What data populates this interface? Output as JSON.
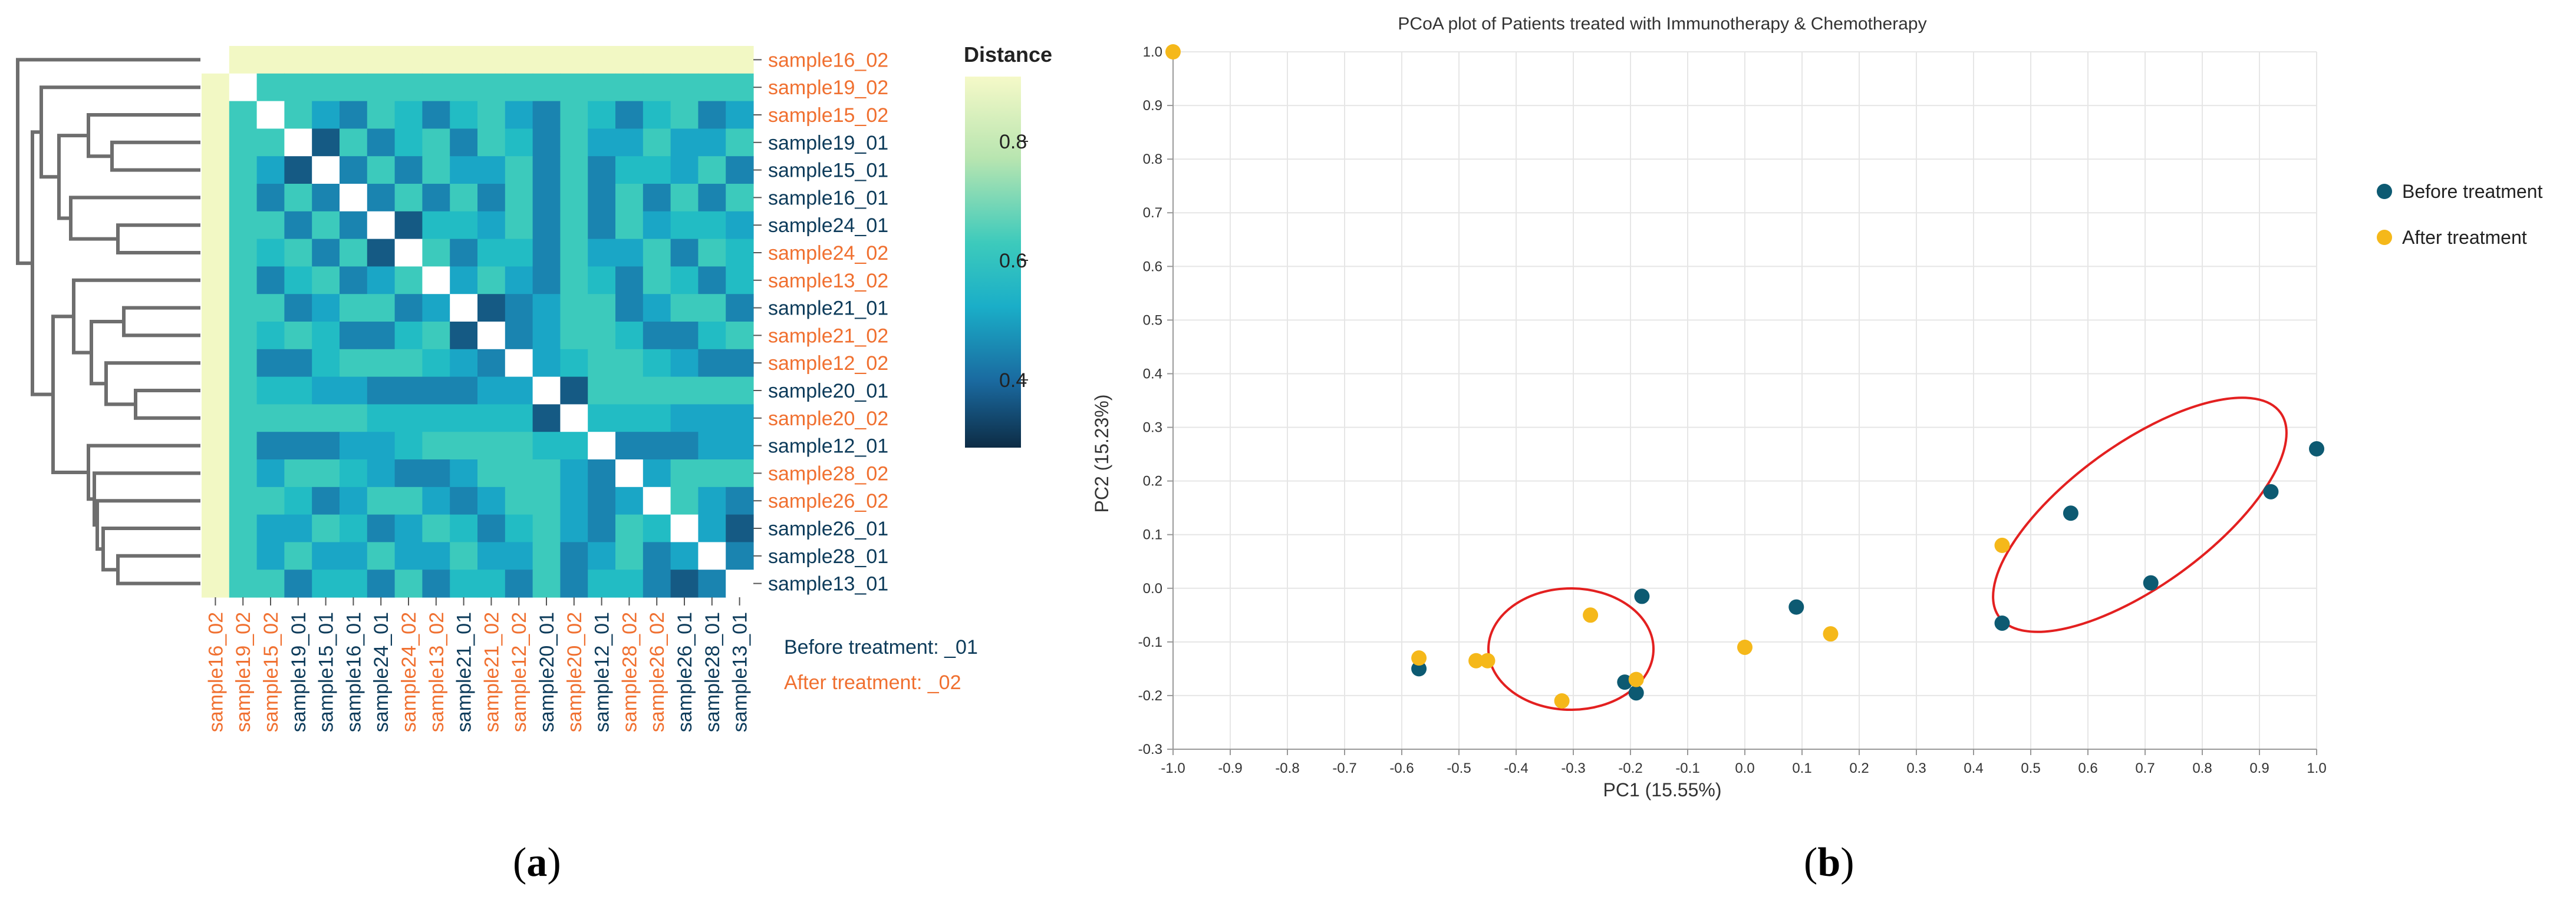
{
  "panel_a": {
    "label_open": "(",
    "label_letter": "a",
    "label_close": ")",
    "row_labels": [
      "sample16_02",
      "sample19_02",
      "sample15_02",
      "sample19_01",
      "sample15_01",
      "sample16_01",
      "sample24_01",
      "sample24_02",
      "sample13_02",
      "sample21_01",
      "sample21_02",
      "sample12_02",
      "sample20_01",
      "sample20_02",
      "sample12_01",
      "sample28_02",
      "sample26_02",
      "sample26_01",
      "sample28_01",
      "sample13_01"
    ],
    "col_labels": [
      "sample16_02",
      "sample19_02",
      "sample15_02",
      "sample19_01",
      "sample15_01",
      "sample16_01",
      "sample24_01",
      "sample24_02",
      "sample13_02",
      "sample21_01",
      "sample21_02",
      "sample12_02",
      "sample20_01",
      "sample20_02",
      "sample12_01",
      "sample28_02",
      "sample26_02",
      "sample26_01",
      "sample28_01",
      "sample13_01"
    ],
    "legend_title": "Distance",
    "legend_ticks": [
      "0.8",
      "0.6",
      "0.4"
    ],
    "note_before": "Before treatment: _01",
    "note_after": "After treatment: _02",
    "colors": {
      "before": "#0d3b5a",
      "after": "#f07030"
    }
  },
  "panel_b": {
    "label_open": "(",
    "label_letter": "b",
    "label_close": ")",
    "chart_data": {
      "type": "scatter",
      "title": "PCoA plot of Patients treated with Immunotherapy & Chemotherapy",
      "xlabel": "PC1 (15.55%)",
      "ylabel": "PC2 (15.23%)",
      "xlim": [
        -1.0,
        1.0
      ],
      "ylim": [
        -0.3,
        1.0
      ],
      "x_ticks": [
        "-1.0",
        "-0.9",
        "-0.8",
        "-0.7",
        "-0.6",
        "-0.5",
        "-0.4",
        "-0.3",
        "-0.2",
        "-0.1",
        "0.0",
        "0.1",
        "0.2",
        "0.3",
        "0.4",
        "0.5",
        "0.6",
        "0.7",
        "0.8",
        "0.9",
        "1.0"
      ],
      "y_ticks": [
        "1.0",
        "0.9",
        "0.8",
        "0.7",
        "0.6",
        "0.5",
        "0.4",
        "0.3",
        "0.2",
        "0.1",
        "0.0",
        "-0.1",
        "-0.2",
        "-0.3"
      ],
      "grid": true,
      "legend_position": "right",
      "series": [
        {
          "name": "Before treatment",
          "color": "#0d5a72",
          "x": [
            -0.57,
            -0.21,
            -0.19,
            -0.18,
            0.09,
            0.45,
            0.57,
            0.71,
            0.92,
            1.0
          ],
          "y": [
            -0.15,
            -0.175,
            -0.195,
            -0.015,
            -0.035,
            -0.065,
            0.14,
            0.01,
            0.18,
            0.26
          ]
        },
        {
          "name": "After treatment",
          "color": "#f5b81a",
          "x": [
            -1.0,
            -0.57,
            -0.47,
            -0.45,
            -0.32,
            -0.27,
            -0.19,
            0.0,
            0.15,
            0.45
          ],
          "y": [
            1.0,
            -0.13,
            -0.135,
            -0.135,
            -0.21,
            -0.05,
            -0.17,
            -0.11,
            -0.085,
            0.08
          ]
        }
      ]
    }
  }
}
